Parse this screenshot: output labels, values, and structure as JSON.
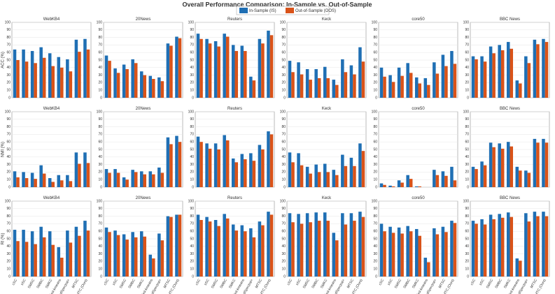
{
  "title": "Overall Performance Comparison: In-Sample vs. Out-of-Sample",
  "legend": [
    {
      "name": "In-Sample (IS)",
      "color": "#1f6fb4"
    },
    {
      "name": "Out-of-Sample (OOS)",
      "color": "#d95319"
    }
  ],
  "chart_data": [
    {
      "type": "bar",
      "title": "WebKB4",
      "ylabel": "ACC (%)",
      "ylim": [
        0,
        100
      ],
      "yticks": [
        0,
        10,
        20,
        30,
        40,
        50,
        60,
        70,
        80,
        90,
        100
      ],
      "series": [
        {
          "values": [
            64,
            64,
            62,
            67,
            59,
            54,
            51,
            77,
            78
          ]
        },
        {
          "values": [
            50,
            48,
            46,
            53,
            42,
            40,
            35,
            61,
            64
          ]
        }
      ]
    },
    {
      "type": "bar",
      "title": "20News",
      "ylim": [
        0,
        100
      ],
      "yticks": [
        0,
        10,
        20,
        30,
        40,
        50,
        60,
        70,
        80,
        90,
        100
      ],
      "series": [
        {
          "values": [
            56,
            39,
            44,
            51,
            35,
            29,
            27,
            72,
            81
          ]
        },
        {
          "values": [
            49,
            33,
            38,
            46,
            30,
            25,
            22,
            69,
            79
          ]
        }
      ]
    },
    {
      "type": "bar",
      "title": "Reuters",
      "ylim": [
        0,
        100
      ],
      "yticks": [
        0,
        10,
        20,
        30,
        40,
        50,
        60,
        70,
        80,
        90,
        100
      ],
      "series": [
        {
          "values": [
            85,
            78,
            75,
            85,
            70,
            69,
            28,
            78,
            89
          ]
        },
        {
          "values": [
            78,
            72,
            68,
            81,
            62,
            62,
            23,
            72,
            83
          ]
        }
      ]
    },
    {
      "type": "bar",
      "title": "Keck",
      "ylim": [
        0,
        100
      ],
      "yticks": [
        0,
        10,
        20,
        30,
        40,
        50,
        60,
        70,
        80,
        90,
        100
      ],
      "series": [
        {
          "values": [
            49,
            47,
            38,
            38,
            41,
            24,
            51,
            43,
            67
          ]
        },
        {
          "values": [
            34,
            31,
            24,
            26,
            26,
            17,
            34,
            31,
            48
          ]
        }
      ]
    },
    {
      "type": "bar",
      "title": "core50",
      "ylim": [
        0,
        100
      ],
      "yticks": [
        0,
        10,
        20,
        30,
        40,
        50,
        60,
        70,
        80,
        90,
        100
      ],
      "series": [
        {
          "values": [
            40,
            30,
            40,
            46,
            27,
            26,
            47,
            57,
            62
          ]
        },
        {
          "values": [
            28,
            21,
            29,
            33,
            19,
            17,
            32,
            42,
            45
          ]
        }
      ]
    },
    {
      "type": "bar",
      "title": "BBC News",
      "ylim": [
        0,
        100
      ],
      "yticks": [
        0,
        10,
        20,
        30,
        40,
        50,
        60,
        70,
        80,
        90,
        100
      ],
      "series": [
        {
          "values": [
            55,
            55,
            68,
            70,
            74,
            23,
            55,
            77,
            78
          ]
        },
        {
          "values": [
            51,
            48,
            59,
            63,
            65,
            19,
            46,
            71,
            74
          ]
        }
      ]
    },
    {
      "type": "bar",
      "title": "WebKB4",
      "ylabel": "NMI (%)",
      "ylim": [
        0,
        100
      ],
      "yticks": [
        0,
        10,
        20,
        30,
        40,
        50,
        60,
        70,
        80,
        90,
        100
      ],
      "series": [
        {
          "values": [
            21,
            20,
            19,
            29,
            12,
            16,
            16,
            46,
            46
          ]
        },
        {
          "values": [
            13,
            12,
            11,
            18,
            7,
            9,
            8,
            31,
            32
          ]
        }
      ]
    },
    {
      "type": "bar",
      "title": "20News",
      "ylim": [
        0,
        100
      ],
      "yticks": [
        0,
        10,
        20,
        30,
        40,
        50,
        60,
        70,
        80,
        90,
        100
      ],
      "series": [
        {
          "values": [
            24,
            24,
            13,
            23,
            21,
            21,
            26,
            66,
            68
          ]
        },
        {
          "values": [
            19,
            19,
            10,
            20,
            17,
            17,
            19,
            57,
            60
          ]
        }
      ]
    },
    {
      "type": "bar",
      "title": "Reuters",
      "ylim": [
        0,
        100
      ],
      "yticks": [
        0,
        10,
        20,
        30,
        40,
        50,
        60,
        70,
        80,
        90,
        100
      ],
      "series": [
        {
          "values": [
            67,
            58,
            58,
            69,
            38,
            44,
            45,
            56,
            74
          ]
        },
        {
          "values": [
            60,
            51,
            50,
            62,
            33,
            37,
            35,
            50,
            70
          ]
        }
      ]
    },
    {
      "type": "bar",
      "title": "Keck",
      "ylim": [
        0,
        100
      ],
      "yticks": [
        0,
        10,
        20,
        30,
        40,
        50,
        60,
        70,
        80,
        90,
        100
      ],
      "series": [
        {
          "values": [
            46,
            45,
            27,
            30,
            31,
            23,
            43,
            39,
            58
          ]
        },
        {
          "values": [
            33,
            29,
            18,
            20,
            20,
            16,
            28,
            28,
            48
          ]
        }
      ]
    },
    {
      "type": "bar",
      "title": "core50",
      "ylim": [
        0,
        100
      ],
      "yticks": [
        0,
        10,
        20,
        30,
        40,
        50,
        60,
        70,
        80,
        90,
        100
      ],
      "series": [
        {
          "values": [
            5,
            2,
            9,
            16,
            1,
            0,
            23,
            21,
            27
          ]
        },
        {
          "values": [
            3,
            1,
            6,
            11,
            1,
            0,
            16,
            15,
            9
          ]
        }
      ]
    },
    {
      "type": "bar",
      "title": "BBC News",
      "ylim": [
        0,
        100
      ],
      "yticks": [
        0,
        10,
        20,
        30,
        40,
        50,
        60,
        70,
        80,
        90,
        100
      ],
      "series": [
        {
          "values": [
            27,
            34,
            59,
            58,
            60,
            27,
            22,
            64,
            64
          ]
        },
        {
          "values": [
            24,
            29,
            53,
            51,
            54,
            22,
            19,
            59,
            59
          ]
        }
      ]
    },
    {
      "type": "bar",
      "title": "WebKB4",
      "ylabel": "RI (%)",
      "ylim": [
        0,
        100
      ],
      "yticks": [
        0,
        10,
        20,
        30,
        40,
        50,
        60,
        70,
        80,
        90,
        100
      ],
      "categories": [
        "cSC",
        "sSC",
        "SMSC",
        "SMBC",
        "SMKC",
        "Fed-kmeans",
        "FedSpectral+",
        "MTSC",
        "FMTC (Ours)"
      ],
      "series": [
        {
          "values": [
            62,
            62,
            60,
            66,
            60,
            39,
            61,
            66,
            74
          ]
        },
        {
          "values": [
            47,
            46,
            43,
            52,
            42,
            25,
            45,
            54,
            61
          ]
        }
      ]
    },
    {
      "type": "bar",
      "title": "20News",
      "ylim": [
        0,
        100
      ],
      "yticks": [
        0,
        10,
        20,
        30,
        40,
        50,
        60,
        70,
        80,
        90,
        100
      ],
      "categories": [
        "cSC",
        "sSC",
        "SMSC",
        "SMBC",
        "SMKC",
        "Fed-kmeans",
        "FedSpectral+",
        "MTSC",
        "FMTC (Ours)"
      ],
      "series": [
        {
          "values": [
            65,
            61,
            56,
            59,
            60,
            29,
            57,
            80,
            82
          ]
        },
        {
          "values": [
            59,
            55,
            49,
            52,
            53,
            24,
            48,
            79,
            82
          ]
        }
      ]
    },
    {
      "type": "bar",
      "title": "Reuters",
      "ylim": [
        0,
        100
      ],
      "yticks": [
        0,
        10,
        20,
        30,
        40,
        50,
        60,
        70,
        80,
        90,
        100
      ],
      "categories": [
        "cSC",
        "sSC",
        "SMSC",
        "SMBC",
        "SMKC",
        "Fed-kmeans",
        "FedSpectral+",
        "MTSC",
        "FMTC (Ours)"
      ],
      "series": [
        {
          "values": [
            82,
            79,
            75,
            83,
            69,
            68,
            64,
            73,
            86
          ]
        },
        {
          "values": [
            75,
            73,
            67,
            77,
            61,
            60,
            52,
            68,
            82
          ]
        }
      ]
    },
    {
      "type": "bar",
      "title": "Keck",
      "ylim": [
        0,
        100
      ],
      "yticks": [
        0,
        10,
        20,
        30,
        40,
        50,
        60,
        70,
        80,
        90,
        100
      ],
      "categories": [
        "cSC",
        "sSC",
        "SMSC",
        "SMBC",
        "SMKC",
        "Fed-kmeans",
        "FedSpectral+",
        "MTSC",
        "FMTC (Ours)"
      ],
      "series": [
        {
          "values": [
            84,
            83,
            84,
            85,
            85,
            58,
            84,
            84,
            86
          ]
        },
        {
          "values": [
            72,
            70,
            72,
            74,
            74,
            48,
            69,
            74,
            79
          ]
        }
      ]
    },
    {
      "type": "bar",
      "title": "core50",
      "ylim": [
        0,
        100
      ],
      "yticks": [
        0,
        10,
        20,
        30,
        40,
        50,
        60,
        70,
        80,
        90,
        100
      ],
      "categories": [
        "cSC",
        "sSC",
        "SMSC",
        "SMBC",
        "SMKC",
        "Fed-kmeans",
        "FedSpectral+",
        "MTSC",
        "FMTC (Ours)"
      ],
      "series": [
        {
          "values": [
            70,
            66,
            65,
            67,
            63,
            25,
            64,
            66,
            74
          ]
        },
        {
          "values": [
            60,
            58,
            57,
            60,
            54,
            19,
            56,
            59,
            71
          ]
        }
      ]
    },
    {
      "type": "bar",
      "title": "BBC News",
      "ylim": [
        0,
        100
      ],
      "yticks": [
        0,
        10,
        20,
        30,
        40,
        50,
        60,
        70,
        80,
        90,
        100
      ],
      "categories": [
        "cSC",
        "sSC",
        "SMSC",
        "SMBC",
        "SMKC",
        "Fed-kmeans",
        "FedSpectral+",
        "MTSC",
        "FMTC (Ours)"
      ],
      "series": [
        {
          "values": [
            74,
            76,
            82,
            83,
            85,
            24,
            84,
            86,
            86
          ]
        },
        {
          "values": [
            70,
            69,
            76,
            78,
            79,
            21,
            73,
            80,
            80
          ]
        }
      ]
    }
  ]
}
